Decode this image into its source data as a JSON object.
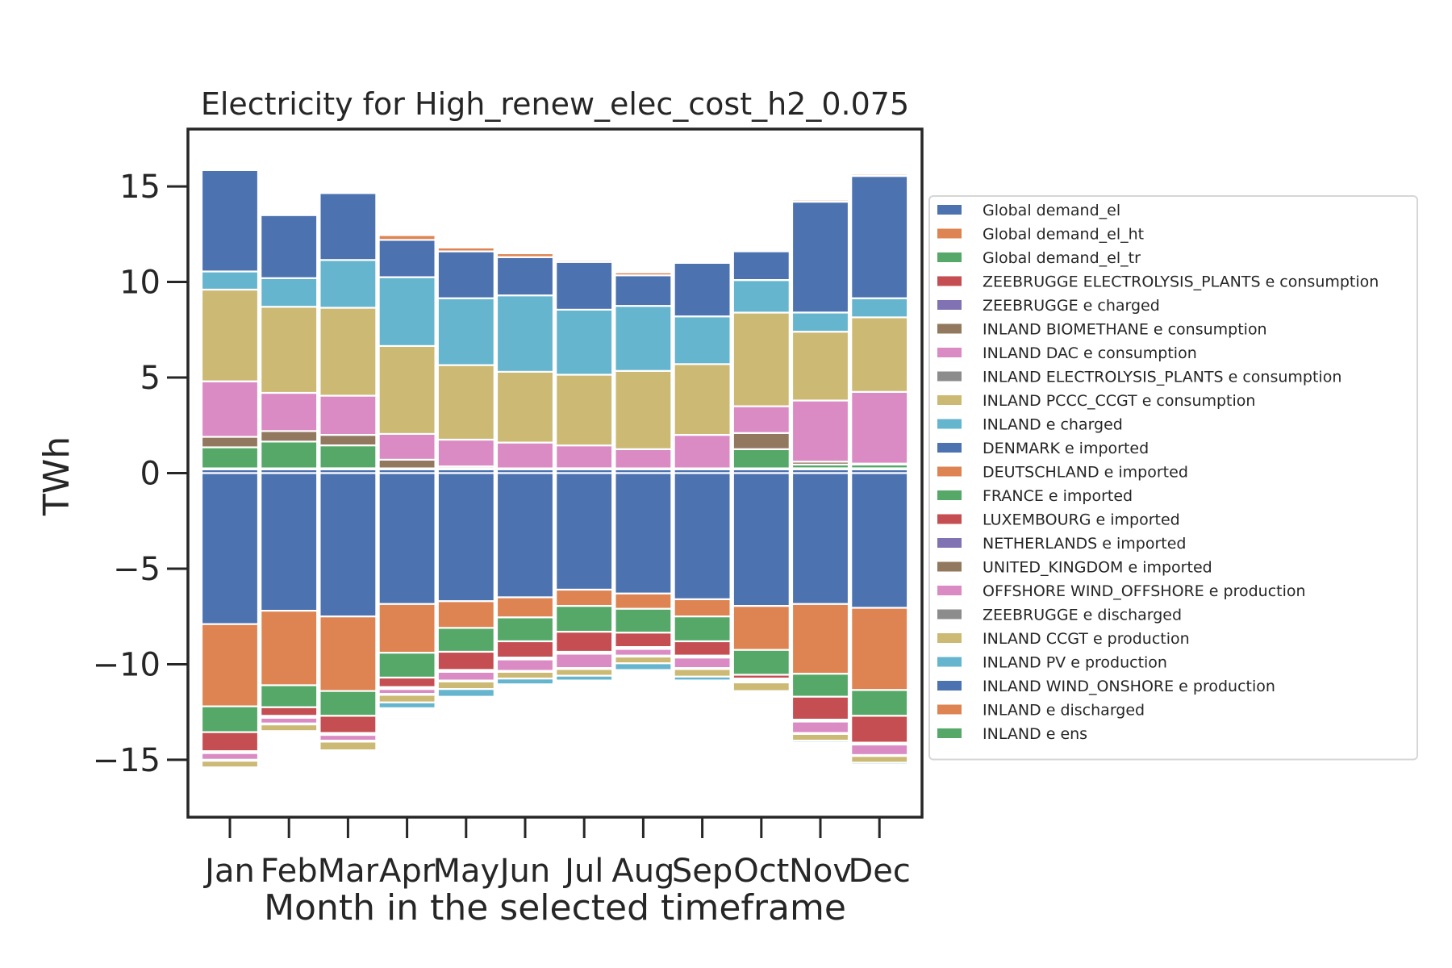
{
  "chart_data": {
    "type": "bar",
    "stacked": true,
    "title": "Electricity for High_renew_elec_cost_h2_0.075",
    "xlabel": "Month in the selected timeframe",
    "ylabel": "TWh",
    "ylim": [
      -18,
      18
    ],
    "yticks": [
      -15,
      -10,
      -5,
      0,
      5,
      10,
      15
    ],
    "ytick_labels": [
      "−15",
      "−10",
      "−5",
      "0",
      "5",
      "10",
      "15"
    ],
    "grid": false,
    "legend_position": "right",
    "categories": [
      "Jan",
      "Feb",
      "Mar",
      "Apr",
      "May",
      "Jun",
      "Jul",
      "Aug",
      "Sep",
      "Oct",
      "Nov",
      "Dec"
    ],
    "series": [
      {
        "name": "Global demand_el",
        "color": "#4c72b0",
        "values": [
          0.2,
          0.2,
          0.2,
          0.2,
          0.2,
          0.2,
          0.2,
          0.2,
          0.2,
          0.2,
          0.2,
          0.2
        ]
      },
      {
        "name": "Global demand_el_ht",
        "color": "#dd8452",
        "values": [
          0.05,
          0.05,
          0.05,
          0.05,
          0.05,
          0.05,
          0.05,
          0.05,
          0.05,
          0.05,
          0.05,
          0.05
        ]
      },
      {
        "name": "Global demand_el_tr",
        "color": "#55a868",
        "values": [
          1.1,
          1.4,
          1.2,
          0,
          0,
          0,
          0,
          0,
          0,
          1.0,
          0.2,
          0.2
        ]
      },
      {
        "name": "ZEEBRUGGE ELECTROLYSIS_PLANTS e consumption",
        "color": "#c44e52",
        "values": [
          0,
          0,
          0,
          0,
          0,
          0,
          0,
          0,
          0,
          0,
          0,
          0
        ]
      },
      {
        "name": "ZEEBRUGGE e charged",
        "color": "#8172b3",
        "values": [
          0,
          0,
          0,
          0,
          0,
          0,
          0,
          0,
          0,
          0,
          0,
          0
        ]
      },
      {
        "name": "INLAND BIOMETHANE e consumption",
        "color": "#937860",
        "values": [
          0.55,
          0.55,
          0.55,
          0.45,
          0.1,
          0,
          0,
          0,
          0,
          0.85,
          0.15,
          0.05
        ]
      },
      {
        "name": "INLAND DAC e consumption",
        "color": "#da8bc3",
        "values": [
          2.9,
          2.0,
          2.05,
          1.35,
          1.4,
          1.35,
          1.2,
          1.0,
          1.75,
          1.4,
          3.2,
          3.75
        ]
      },
      {
        "name": "INLAND ELECTROLYSIS_PLANTS e consumption",
        "color": "#8c8c8c",
        "values": [
          0,
          0,
          0,
          0,
          0,
          0,
          0,
          0,
          0,
          0,
          0,
          0
        ]
      },
      {
        "name": "INLAND PCCC_CCGT e consumption",
        "color": "#ccb974",
        "values": [
          4.8,
          4.5,
          4.6,
          4.6,
          3.9,
          3.7,
          3.7,
          4.1,
          3.7,
          4.9,
          3.6,
          3.9
        ]
      },
      {
        "name": "INLAND e charged",
        "color": "#64b5cd",
        "values": [
          0.95,
          1.5,
          2.5,
          3.6,
          3.5,
          4.0,
          3.4,
          3.4,
          2.5,
          1.7,
          1.0,
          1.0
        ]
      },
      {
        "name": "DENMARK e imported",
        "color": "#4c72b0",
        "values": [
          5.3,
          3.3,
          3.5,
          1.95,
          2.45,
          2.0,
          2.5,
          1.6,
          2.8,
          1.5,
          5.8,
          6.4
        ]
      },
      {
        "name": "DEUTSCHLAND e imported",
        "color": "#dd8452",
        "values": [
          0,
          0.05,
          0,
          0.25,
          0.2,
          0.2,
          0.1,
          0.15,
          0.05,
          0,
          0.1,
          0.1
        ]
      },
      {
        "name": "FRANCE e imported",
        "color": "#55a868",
        "values": [
          0,
          0,
          0,
          0,
          0,
          0,
          0,
          0,
          0,
          0,
          0,
          0
        ]
      },
      {
        "name": "LUXEMBOURG e imported",
        "color": "#c44e52",
        "values": [
          0,
          0,
          0,
          0,
          0,
          0,
          0,
          0,
          0,
          0,
          0,
          0
        ]
      },
      {
        "name": "NETHERLANDS e imported",
        "color": "#8172b3",
        "values": [
          0,
          0,
          0,
          0,
          0,
          0,
          0,
          0,
          0,
          0,
          0,
          0
        ]
      },
      {
        "name": "UNITED_KINGDOM e imported",
        "color": "#937860",
        "values": [
          0,
          0,
          0,
          0,
          0,
          0,
          0,
          0,
          0,
          0,
          0,
          0
        ]
      },
      {
        "name": "OFFSHORE WIND_OFFSHORE e production",
        "color": "#da8bc3",
        "values": [
          0,
          0,
          0,
          0,
          0,
          0,
          0,
          0,
          0,
          0,
          0,
          0
        ]
      },
      {
        "name": "ZEEBRUGGE e discharged",
        "color": "#8c8c8c",
        "values": [
          0,
          0,
          0,
          0,
          0,
          0,
          0,
          0,
          0,
          0,
          0,
          0
        ]
      },
      {
        "name": "INLAND CCGT e production",
        "color": "#ccb974",
        "values": [
          0,
          0,
          0,
          0,
          0,
          0,
          0,
          0,
          0,
          0,
          0,
          0
        ]
      },
      {
        "name": "INLAND PV e production",
        "color": "#64b5cd",
        "values": [
          0,
          0,
          0,
          0,
          0,
          0,
          0,
          0,
          0,
          0,
          0,
          0
        ]
      },
      {
        "name": "INLAND WIND_ONSHORE e production",
        "color": "#4c72b0",
        "values": [
          -7.9,
          -7.2,
          -7.5,
          -6.85,
          -6.7,
          -6.5,
          -6.1,
          -6.3,
          -6.6,
          -6.95,
          -6.85,
          -7.05
        ]
      },
      {
        "name": "INLAND e discharged",
        "color": "#dd8452",
        "values": [
          -4.3,
          -3.9,
          -3.9,
          -2.55,
          -1.4,
          -1.05,
          -0.85,
          -0.8,
          -0.9,
          -2.3,
          -3.65,
          -4.3
        ]
      },
      {
        "name": "INLAND e ens",
        "color": "#55a868",
        "values": [
          -1.35,
          -1.15,
          -1.3,
          -1.3,
          -1.25,
          -1.25,
          -1.35,
          -1.25,
          -1.3,
          -1.3,
          -1.2,
          -1.35
        ]
      },
      {
        "name": "ZEEBRUGGE ELECTROLYSIS_PLANTS e consumption",
        "color": "#c44e52",
        "values": [
          -1.0,
          -0.45,
          -0.9,
          -0.5,
          -0.95,
          -0.85,
          -1.05,
          -0.75,
          -0.75,
          -0.2,
          -1.2,
          -1.4
        ]
      },
      {
        "name": "ZEEBRUGGE e charged",
        "color": "#8172b3",
        "values": [
          -0.05,
          -0.05,
          -0.05,
          -0.05,
          -0.05,
          -0.05,
          -0.05,
          -0.05,
          -0.05,
          -0.05,
          -0.05,
          -0.05
        ]
      },
      {
        "name": "INLAND BIOMETHANE e consumption",
        "color": "#937860",
        "values": [
          -0.05,
          -0.05,
          -0.05,
          -0.05,
          -0.05,
          -0.05,
          -0.05,
          -0.05,
          -0.05,
          -0.05,
          -0.05,
          -0.05
        ]
      },
      {
        "name": "INLAND DAC e consumption",
        "color": "#da8bc3",
        "values": [
          -0.35,
          -0.3,
          -0.3,
          -0.25,
          -0.45,
          -0.6,
          -0.75,
          -0.35,
          -0.55,
          -0.05,
          -0.6,
          -0.55
        ]
      },
      {
        "name": "INLAND ELECTROLYSIS_PLANTS e consumption",
        "color": "#8c8c8c",
        "values": [
          -0.05,
          -0.05,
          -0.05,
          -0.05,
          -0.05,
          -0.05,
          -0.05,
          -0.05,
          -0.05,
          -0.05,
          -0.05,
          -0.05
        ]
      },
      {
        "name": "INLAND PCCC_CCGT e consumption",
        "color": "#ccb974",
        "values": [
          -0.35,
          -0.35,
          -0.45,
          -0.4,
          -0.4,
          -0.35,
          -0.35,
          -0.35,
          -0.4,
          -0.45,
          -0.35,
          -0.35
        ]
      },
      {
        "name": "INLAND e charged",
        "color": "#64b5cd",
        "values": [
          -0.05,
          -0.05,
          0,
          -0.3,
          -0.4,
          -0.3,
          -0.25,
          -0.35,
          -0.2,
          0,
          -0.1,
          -0.1
        ]
      }
    ],
    "legend": [
      {
        "name": "Global demand_el",
        "color": "#4c72b0"
      },
      {
        "name": "Global demand_el_ht",
        "color": "#dd8452"
      },
      {
        "name": "Global demand_el_tr",
        "color": "#55a868"
      },
      {
        "name": "ZEEBRUGGE ELECTROLYSIS_PLANTS e consumption",
        "color": "#c44e52"
      },
      {
        "name": "ZEEBRUGGE e charged",
        "color": "#8172b3"
      },
      {
        "name": "INLAND BIOMETHANE e consumption",
        "color": "#937860"
      },
      {
        "name": "INLAND DAC e consumption",
        "color": "#da8bc3"
      },
      {
        "name": "INLAND ELECTROLYSIS_PLANTS e consumption",
        "color": "#8c8c8c"
      },
      {
        "name": "INLAND PCCC_CCGT e consumption",
        "color": "#ccb974"
      },
      {
        "name": "INLAND e charged",
        "color": "#64b5cd"
      },
      {
        "name": "DENMARK e imported",
        "color": "#4c72b0"
      },
      {
        "name": "DEUTSCHLAND e imported",
        "color": "#dd8452"
      },
      {
        "name": "FRANCE e imported",
        "color": "#55a868"
      },
      {
        "name": "LUXEMBOURG e imported",
        "color": "#c44e52"
      },
      {
        "name": "NETHERLANDS e imported",
        "color": "#8172b3"
      },
      {
        "name": "UNITED_KINGDOM e imported",
        "color": "#937860"
      },
      {
        "name": "OFFSHORE WIND_OFFSHORE e production",
        "color": "#da8bc3"
      },
      {
        "name": "ZEEBRUGGE e discharged",
        "color": "#8c8c8c"
      },
      {
        "name": "INLAND CCGT e production",
        "color": "#ccb974"
      },
      {
        "name": "INLAND PV e production",
        "color": "#64b5cd"
      },
      {
        "name": "INLAND WIND_ONSHORE e production",
        "color": "#4c72b0"
      },
      {
        "name": "INLAND e discharged",
        "color": "#dd8452"
      },
      {
        "name": "INLAND e ens",
        "color": "#55a868"
      }
    ]
  }
}
